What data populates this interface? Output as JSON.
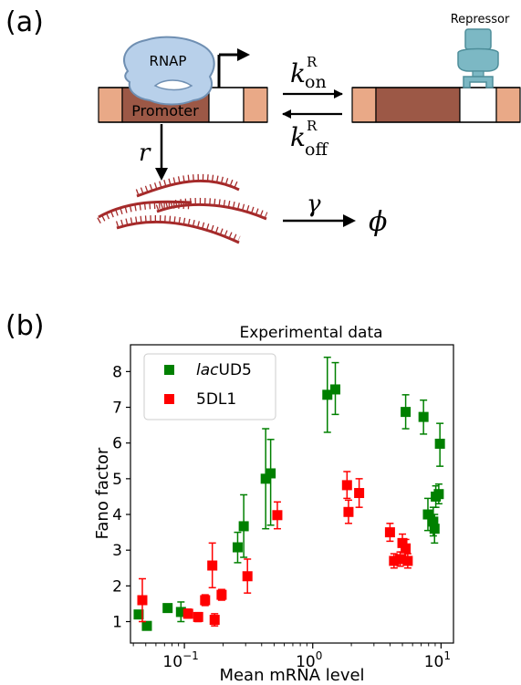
{
  "panel_a": {
    "label": "(a)",
    "rnap_label": "RNAP",
    "promoter_label": "Promoter",
    "repressor_label": "Repressor",
    "k_symbol": "k",
    "kon_sup": "R",
    "kon_sub": "on",
    "koff_sup": "R",
    "koff_sub": "off",
    "r_symbol": "r",
    "gamma_symbol": "γ",
    "phi_symbol": "ϕ"
  },
  "panel_b": {
    "label": "(b)"
  },
  "chart_data": {
    "type": "scatter",
    "title": "Experimental data",
    "xlabel": "Mean mRNA level",
    "ylabel": "Fano factor",
    "xscale": "log",
    "xlim": [
      0.038,
      12.5
    ],
    "ylim": [
      0.4,
      8.75
    ],
    "x_ticks": [
      {
        "value": 0.1,
        "base": "10",
        "exp": "−1"
      },
      {
        "value": 1,
        "base": "10",
        "exp": "0"
      },
      {
        "value": 10,
        "base": "10",
        "exp": "1"
      }
    ],
    "y_ticks": [
      "1",
      "2",
      "3",
      "4",
      "5",
      "6",
      "7",
      "8"
    ],
    "legend_position": "top-left",
    "series": [
      {
        "name_italic": "lac",
        "name_rest": "UD5",
        "color": "#008000",
        "points": [
          {
            "x": 0.044,
            "y": 1.2,
            "lo": 1.2,
            "hi": 1.2
          },
          {
            "x": 0.051,
            "y": 0.88,
            "lo": 0.88,
            "hi": 0.88
          },
          {
            "x": 0.074,
            "y": 1.38,
            "lo": 1.38,
            "hi": 1.38
          },
          {
            "x": 0.094,
            "y": 1.27,
            "lo": 1.0,
            "hi": 1.55
          },
          {
            "x": 0.26,
            "y": 3.08,
            "lo": 2.65,
            "hi": 3.5
          },
          {
            "x": 0.29,
            "y": 3.67,
            "lo": 2.8,
            "hi": 4.55
          },
          {
            "x": 0.43,
            "y": 5.0,
            "lo": 3.6,
            "hi": 6.4
          },
          {
            "x": 0.47,
            "y": 5.15,
            "lo": 3.7,
            "hi": 6.1
          },
          {
            "x": 1.3,
            "y": 7.35,
            "lo": 6.3,
            "hi": 8.4
          },
          {
            "x": 1.5,
            "y": 7.5,
            "lo": 6.8,
            "hi": 8.25
          },
          {
            "x": 5.3,
            "y": 6.87,
            "lo": 6.4,
            "hi": 7.35
          },
          {
            "x": 7.3,
            "y": 6.73,
            "lo": 6.25,
            "hi": 7.2
          },
          {
            "x": 9.8,
            "y": 5.98,
            "lo": 5.35,
            "hi": 6.55
          },
          {
            "x": 7.9,
            "y": 4.0,
            "lo": 3.55,
            "hi": 4.45
          },
          {
            "x": 8.7,
            "y": 3.8,
            "lo": 3.4,
            "hi": 4.2
          },
          {
            "x": 8.9,
            "y": 3.6,
            "lo": 3.2,
            "hi": 4.0
          },
          {
            "x": 9.1,
            "y": 4.5,
            "lo": 4.2,
            "hi": 4.8
          },
          {
            "x": 9.6,
            "y": 4.57,
            "lo": 4.3,
            "hi": 4.85
          }
        ]
      },
      {
        "name": "5DL1",
        "color": "#ff0000",
        "points": [
          {
            "x": 0.047,
            "y": 1.6,
            "lo": 1.0,
            "hi": 2.2
          },
          {
            "x": 0.107,
            "y": 1.22,
            "lo": 1.1,
            "hi": 1.35
          },
          {
            "x": 0.128,
            "y": 1.13,
            "lo": 1.0,
            "hi": 1.25
          },
          {
            "x": 0.145,
            "y": 1.6,
            "lo": 1.45,
            "hi": 1.75
          },
          {
            "x": 0.165,
            "y": 2.57,
            "lo": 1.95,
            "hi": 3.2
          },
          {
            "x": 0.172,
            "y": 1.05,
            "lo": 0.88,
            "hi": 1.22
          },
          {
            "x": 0.195,
            "y": 1.75,
            "lo": 1.6,
            "hi": 1.9
          },
          {
            "x": 0.31,
            "y": 2.27,
            "lo": 1.8,
            "hi": 2.75
          },
          {
            "x": 0.53,
            "y": 3.98,
            "lo": 3.6,
            "hi": 4.35
          },
          {
            "x": 1.85,
            "y": 4.82,
            "lo": 4.45,
            "hi": 5.2
          },
          {
            "x": 1.9,
            "y": 4.07,
            "lo": 3.75,
            "hi": 4.4
          },
          {
            "x": 2.3,
            "y": 4.6,
            "lo": 4.2,
            "hi": 5.0
          },
          {
            "x": 4.0,
            "y": 3.5,
            "lo": 3.25,
            "hi": 3.75
          },
          {
            "x": 4.3,
            "y": 2.7,
            "lo": 2.5,
            "hi": 2.9
          },
          {
            "x": 4.8,
            "y": 2.75,
            "lo": 2.55,
            "hi": 2.95
          },
          {
            "x": 5.0,
            "y": 3.2,
            "lo": 2.95,
            "hi": 3.45
          },
          {
            "x": 5.3,
            "y": 3.05,
            "lo": 2.8,
            "hi": 3.3
          },
          {
            "x": 5.5,
            "y": 2.7,
            "lo": 2.5,
            "hi": 2.9
          }
        ]
      }
    ]
  }
}
